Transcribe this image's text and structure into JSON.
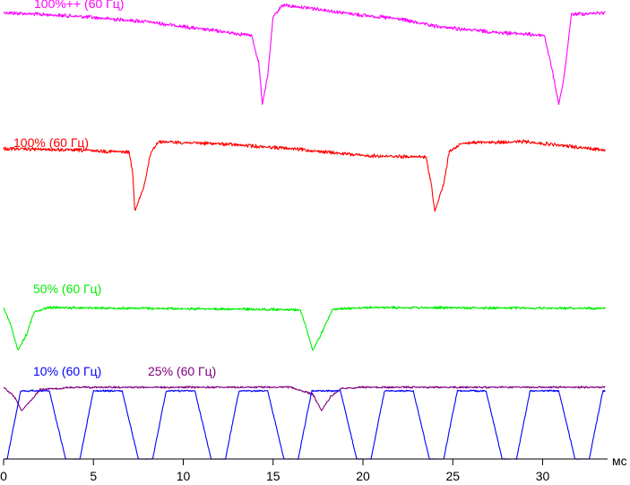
{
  "chart_data": {
    "type": "line",
    "x_unit": "мс",
    "xlim": [
      0,
      33.5
    ],
    "x_ticks": [
      0,
      5,
      10,
      15,
      20,
      25,
      30
    ],
    "grid": false,
    "legend": "inline labels above each trace",
    "series": [
      {
        "name": "100%++ (60 Гц)",
        "color": "#ff00ff",
        "period_ms": 16.7,
        "baseline_from": 0.05,
        "baseline_to": 0.28,
        "points": [
          [
            0,
            1.0
          ],
          [
            4,
            0.96
          ],
          [
            8,
            0.9
          ],
          [
            11,
            0.82
          ],
          [
            13,
            0.77
          ],
          [
            13.8,
            0.75
          ],
          [
            14.2,
            0.45
          ],
          [
            14.4,
            0.0
          ],
          [
            14.7,
            0.3
          ],
          [
            15.0,
            0.95
          ],
          [
            15.5,
            1.08
          ],
          [
            17,
            1.05
          ],
          [
            20,
            0.97
          ],
          [
            22,
            0.93
          ],
          [
            24,
            0.85
          ],
          [
            27,
            0.79
          ],
          [
            30.1,
            0.75
          ],
          [
            30.5,
            0.4
          ],
          [
            30.9,
            0.0
          ],
          [
            31.2,
            0.3
          ],
          [
            31.6,
            0.98
          ],
          [
            33.5,
            1.0
          ]
        ]
      },
      {
        "name": "100% (60 Гц)",
        "color": "#ff0000",
        "period_ms": 16.7,
        "points": [
          [
            0,
            0.9
          ],
          [
            4,
            0.88
          ],
          [
            7,
            0.85
          ],
          [
            7.2,
            0.5
          ],
          [
            7.3,
            0.0
          ],
          [
            7.8,
            0.35
          ],
          [
            8.2,
            0.85
          ],
          [
            8.6,
            1.0
          ],
          [
            12,
            0.97
          ],
          [
            16,
            0.9
          ],
          [
            20,
            0.8
          ],
          [
            23.5,
            0.78
          ],
          [
            23.8,
            0.4
          ],
          [
            24.0,
            0.0
          ],
          [
            24.5,
            0.4
          ],
          [
            24.8,
            0.85
          ],
          [
            25.5,
            0.98
          ],
          [
            29,
            1.0
          ],
          [
            33.5,
            0.88
          ]
        ]
      },
      {
        "name": "50% (60 Гц)",
        "color": "#00ee00",
        "period_ms": 16.7,
        "points": [
          [
            0,
            0.98
          ],
          [
            0.4,
            0.6
          ],
          [
            0.8,
            0.0
          ],
          [
            1.3,
            0.4
          ],
          [
            1.7,
            0.9
          ],
          [
            2.5,
            1.0
          ],
          [
            16.5,
            0.95
          ],
          [
            16.8,
            0.6
          ],
          [
            17.2,
            0.0
          ],
          [
            17.7,
            0.4
          ],
          [
            18.3,
            0.95
          ],
          [
            20,
            1.0
          ],
          [
            33.5,
            0.98
          ]
        ]
      },
      {
        "name": "25% (60 Гц)",
        "color": "#800080",
        "period_ms": 16.7,
        "points": [
          [
            0,
            1.0
          ],
          [
            0.6,
            0.6
          ],
          [
            1.0,
            0.0
          ],
          [
            1.6,
            0.5
          ],
          [
            2.0,
            0.9
          ],
          [
            4,
            1.0
          ],
          [
            16,
            1.0
          ],
          [
            17.2,
            0.7
          ],
          [
            17.7,
            0.0
          ],
          [
            18.2,
            0.6
          ],
          [
            18.8,
            0.95
          ],
          [
            20,
            1.0
          ],
          [
            33.5,
            1.0
          ]
        ]
      },
      {
        "name": "10% (60 Гц)",
        "color": "#0000ff",
        "pwm_period_ms": 4.05,
        "pwm_on_ms": 2.35,
        "pwm_rise_ms": 0.75,
        "pwm_fall_ms": 0.9,
        "first_rise_ms": 0.2
      }
    ]
  }
}
